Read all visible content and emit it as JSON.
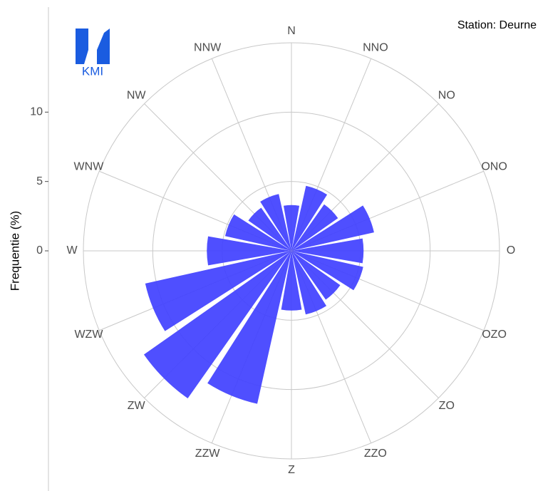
{
  "chart_data": {
    "type": "polar_bar",
    "title": "Station: Deurne",
    "y_label": "Frequentie (%)",
    "logo_text": "KMI",
    "categories": [
      "N",
      "NNO",
      "NO",
      "ONO",
      "O",
      "OZO",
      "ZO",
      "ZZO",
      "Z",
      "ZZW",
      "ZW",
      "WZW",
      "W",
      "WNW",
      "NW",
      "NNW"
    ],
    "values": [
      3.3,
      4.8,
      4.1,
      6.1,
      5.2,
      5.3,
      4.3,
      4.7,
      4.3,
      11.3,
      13.0,
      10.8,
      6.1,
      4.9,
      3.8,
      4.2
    ],
    "color": "#4040ff",
    "ylim": [
      0,
      15
    ],
    "yticks": [
      0,
      5,
      10
    ],
    "grid": true
  }
}
